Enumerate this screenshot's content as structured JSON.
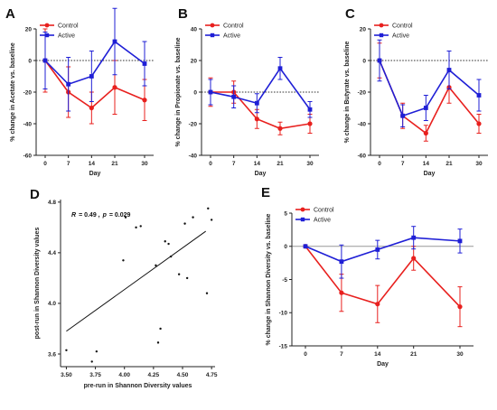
{
  "colors": {
    "control": "#e8201e",
    "active": "#1f1fd6",
    "ref": "#333333",
    "axis": "#222222"
  },
  "chart_data": [
    {
      "type": "line",
      "panel": "A",
      "x": [
        0,
        7,
        14,
        21,
        30
      ],
      "x_ticks": [
        "0",
        "7",
        "14",
        "21",
        "30"
      ],
      "xlabel": "Day",
      "ylabel": "% change in Acetate vs. baseline",
      "ylim": [
        -60,
        20
      ],
      "y_ticks": [
        20,
        0,
        -20,
        -40,
        -60
      ],
      "reference_line": 0,
      "legend": "top-left",
      "series": [
        {
          "name": "Control",
          "color": "#e8201e",
          "marker": "circle",
          "values": [
            0,
            -20,
            -30,
            -17,
            -25
          ],
          "errors": [
            20,
            16,
            10,
            17,
            13
          ]
        },
        {
          "name": "Active",
          "color": "#1f1fd6",
          "marker": "square",
          "values": [
            0,
            -15,
            -10,
            12,
            -2
          ],
          "errors": [
            18,
            17,
            16,
            21,
            14
          ]
        }
      ]
    },
    {
      "type": "line",
      "panel": "B",
      "x": [
        0,
        7,
        14,
        21,
        30
      ],
      "x_ticks": [
        "0",
        "7",
        "14",
        "21",
        "30"
      ],
      "xlabel": "Day",
      "ylabel": "% change in Propionate vs. baseline",
      "ylim": [
        -40,
        40
      ],
      "y_ticks": [
        40,
        20,
        0,
        -20,
        -40
      ],
      "reference_line": 0,
      "legend": "top-left",
      "series": [
        {
          "name": "Control",
          "color": "#e8201e",
          "marker": "circle",
          "values": [
            0,
            0,
            -17,
            -23,
            -20
          ],
          "errors": [
            9,
            7,
            6,
            4,
            6
          ]
        },
        {
          "name": "Active",
          "color": "#1f1fd6",
          "marker": "square",
          "values": [
            0,
            -3,
            -7,
            15,
            -11
          ],
          "errors": [
            8,
            7,
            6,
            7,
            5
          ]
        }
      ]
    },
    {
      "type": "line",
      "panel": "C",
      "x": [
        0,
        7,
        14,
        21,
        30
      ],
      "x_ticks": [
        "0",
        "7",
        "14",
        "21",
        "30"
      ],
      "xlabel": "Day",
      "ylabel": "% change in Butyrate vs. baseline",
      "ylim": [
        -60,
        20
      ],
      "y_ticks": [
        20,
        0,
        -20,
        -40,
        -60
      ],
      "reference_line": 0,
      "legend": "top-left",
      "series": [
        {
          "name": "Control",
          "color": "#e8201e",
          "marker": "circle",
          "values": [
            0,
            -35,
            -46,
            -17,
            -40
          ],
          "errors": [
            11,
            8,
            5,
            10,
            6
          ]
        },
        {
          "name": "Active",
          "color": "#1f1fd6",
          "marker": "square",
          "values": [
            0,
            -35,
            -30,
            -6,
            -22
          ],
          "errors": [
            13,
            7,
            8,
            12,
            10
          ]
        }
      ]
    },
    {
      "type": "scatter",
      "panel": "D",
      "xlabel": "pre-run in Shannon Diversity values",
      "ylabel": "post-run in Shannon Diversity values",
      "xlim": [
        3.45,
        4.78
      ],
      "ylim": [
        3.5,
        4.82
      ],
      "x_ticks": [
        3.5,
        3.75,
        4.0,
        4.25,
        4.5,
        4.75
      ],
      "x_tick_labels": [
        "3.50",
        "3.75",
        "4.00",
        "4.25",
        "4.50",
        "4.75"
      ],
      "y_ticks": [
        3.6,
        4.0,
        4.4,
        4.8
      ],
      "y_tick_labels": [
        "3.6",
        "4.0",
        "4.4",
        "4.8"
      ],
      "annotation": {
        "r_label": "R",
        "r_value": "= 0.49 , ",
        "p_label": "p",
        "p_value": "= 0.029"
      },
      "fit_line": {
        "x": [
          3.5,
          4.7
        ],
        "y": [
          3.78,
          4.57
        ]
      },
      "points": [
        [
          3.5,
          3.63
        ],
        [
          3.72,
          3.54
        ],
        [
          3.76,
          3.62
        ],
        [
          3.99,
          4.34
        ],
        [
          4.01,
          4.68
        ],
        [
          4.1,
          4.6
        ],
        [
          4.14,
          4.61
        ],
        [
          4.27,
          4.3
        ],
        [
          4.29,
          3.69
        ],
        [
          4.31,
          3.8
        ],
        [
          4.35,
          4.49
        ],
        [
          4.38,
          4.47
        ],
        [
          4.4,
          4.37
        ],
        [
          4.47,
          4.23
        ],
        [
          4.52,
          4.63
        ],
        [
          4.54,
          4.2
        ],
        [
          4.59,
          4.68
        ],
        [
          4.71,
          4.08
        ],
        [
          4.72,
          4.75
        ],
        [
          4.75,
          4.66
        ]
      ]
    },
    {
      "type": "line",
      "panel": "E",
      "x": [
        0,
        7,
        14,
        21,
        30
      ],
      "x_ticks": [
        "0",
        "7",
        "14",
        "21",
        "30"
      ],
      "xlabel": "Day",
      "ylabel": "% change in Shannon Diversity vs. baseline",
      "ylim": [
        -15,
        5
      ],
      "y_ticks": [
        5,
        0,
        -5,
        -10,
        -15
      ],
      "reference_line": 0,
      "legend": "top-left",
      "series": [
        {
          "name": "Control",
          "color": "#e8201e",
          "marker": "circle",
          "values": [
            0,
            -7,
            -8.7,
            -1.8,
            -9.1
          ],
          "errors": [
            0,
            2.8,
            2.8,
            1.8,
            3.0
          ]
        },
        {
          "name": "Active",
          "color": "#1f1fd6",
          "marker": "square",
          "values": [
            0,
            -2.3,
            -0.5,
            1.3,
            0.8
          ],
          "errors": [
            0,
            2.5,
            1.4,
            1.7,
            1.8
          ]
        }
      ]
    }
  ]
}
